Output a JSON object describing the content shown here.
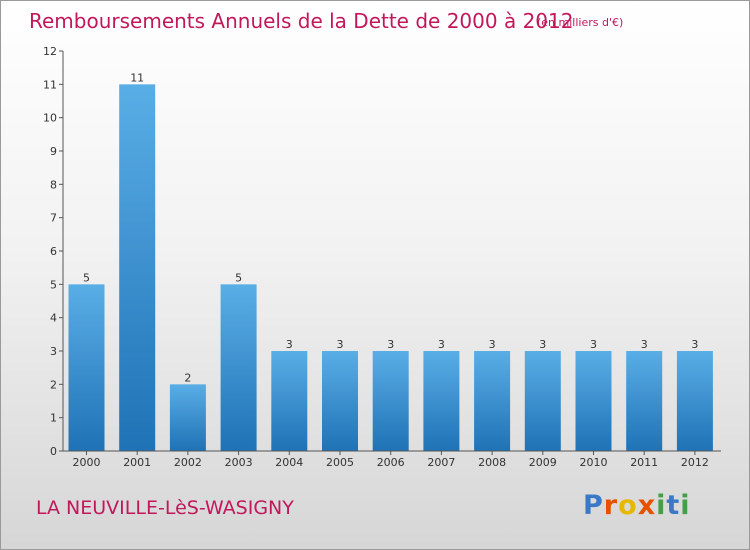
{
  "title": "Remboursements Annuels de la Dette de 2000 à 2012",
  "unit_note": "(en milliers d'€)",
  "commune": "LA NEUVILLE-LèS-WASIGNY",
  "logo": {
    "text": "Proxiti"
  },
  "colors": {
    "title": "#c2185b",
    "bar_light": "#5aaee6",
    "bar_dark": "#1f72b5",
    "axis": "#555555"
  },
  "chart_data": {
    "type": "bar",
    "categories": [
      "2000",
      "2001",
      "2002",
      "2003",
      "2004",
      "2005",
      "2006",
      "2007",
      "2008",
      "2009",
      "2010",
      "2011",
      "2012"
    ],
    "values": [
      5,
      11,
      2,
      5,
      3,
      3,
      3,
      3,
      3,
      3,
      3,
      3,
      3
    ],
    "value_labels": [
      "5",
      "11",
      "2",
      "5",
      "3",
      "3",
      "3",
      "3",
      "3",
      "3",
      "3",
      "3",
      "3"
    ],
    "title": "Remboursements Annuels de la Dette de 2000 à 2012",
    "xlabel": "",
    "ylabel": "",
    "ylim": [
      0,
      12
    ],
    "yticks": [
      0,
      1,
      2,
      3,
      4,
      5,
      6,
      7,
      8,
      9,
      10,
      11,
      12
    ],
    "grid": false,
    "legend": "none"
  }
}
